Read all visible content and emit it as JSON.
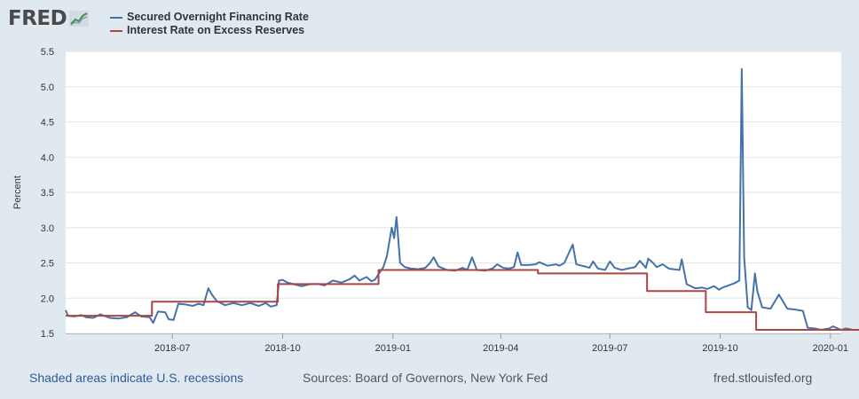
{
  "logo": {
    "text": "FRED",
    "icon": "fred-chart-icon"
  },
  "legend": [
    {
      "label": "Secured Overnight Financing Rate",
      "color": "#4572a7"
    },
    {
      "label": "Interest Rate on Excess Reserves",
      "color": "#aa4643"
    }
  ],
  "footer": {
    "recessions": "Shaded areas indicate U.S. recessions",
    "sources": "Sources: Board of Governors, New York Fed",
    "site": "fred.stlouisfed.org"
  },
  "chart_data": {
    "type": "line",
    "title": "",
    "xlabel": "",
    "ylabel": "Percent",
    "ylim": [
      1.5,
      5.5
    ],
    "yticks": [
      "1.5",
      "2.0",
      "2.5",
      "3.0",
      "3.5",
      "4.0",
      "4.5",
      "5.0",
      "5.5"
    ],
    "xlim": [
      "2018-04-03",
      "2020-01-10"
    ],
    "xticks": [
      {
        "date": "2018-07-01",
        "label": "2018-07"
      },
      {
        "date": "2018-10-01",
        "label": "2018-10"
      },
      {
        "date": "2019-01-01",
        "label": "2019-01"
      },
      {
        "date": "2019-04-01",
        "label": "2019-04"
      },
      {
        "date": "2019-07-01",
        "label": "2019-07"
      },
      {
        "date": "2019-10-01",
        "label": "2019-10"
      },
      {
        "date": "2020-01-01",
        "label": "2020-01"
      }
    ],
    "grid": "horizontal",
    "legend_position": "top-left",
    "series": [
      {
        "name": "Secured Overnight Financing Rate",
        "color": "#4572a7",
        "points": [
          [
            "2018-04-03",
            1.83
          ],
          [
            "2018-04-05",
            1.75
          ],
          [
            "2018-04-10",
            1.74
          ],
          [
            "2018-04-16",
            1.76
          ],
          [
            "2018-04-20",
            1.73
          ],
          [
            "2018-04-26",
            1.72
          ],
          [
            "2018-05-02",
            1.77
          ],
          [
            "2018-05-10",
            1.72
          ],
          [
            "2018-05-17",
            1.71
          ],
          [
            "2018-05-24",
            1.73
          ],
          [
            "2018-05-31",
            1.8
          ],
          [
            "2018-06-05",
            1.74
          ],
          [
            "2018-06-12",
            1.73
          ],
          [
            "2018-06-15",
            1.65
          ],
          [
            "2018-06-19",
            1.81
          ],
          [
            "2018-06-25",
            1.8
          ],
          [
            "2018-06-28",
            1.7
          ],
          [
            "2018-07-02",
            1.69
          ],
          [
            "2018-07-06",
            1.92
          ],
          [
            "2018-07-12",
            1.91
          ],
          [
            "2018-07-18",
            1.89
          ],
          [
            "2018-07-23",
            1.92
          ],
          [
            "2018-07-27",
            1.9
          ],
          [
            "2018-07-31",
            2.14
          ],
          [
            "2018-08-03",
            2.05
          ],
          [
            "2018-08-07",
            1.96
          ],
          [
            "2018-08-14",
            1.9
          ],
          [
            "2018-08-21",
            1.93
          ],
          [
            "2018-08-28",
            1.9
          ],
          [
            "2018-09-04",
            1.93
          ],
          [
            "2018-09-11",
            1.89
          ],
          [
            "2018-09-17",
            1.93
          ],
          [
            "2018-09-21",
            1.88
          ],
          [
            "2018-09-26",
            1.9
          ],
          [
            "2018-09-28",
            2.25
          ],
          [
            "2018-10-01",
            2.26
          ],
          [
            "2018-10-05",
            2.22
          ],
          [
            "2018-10-12",
            2.19
          ],
          [
            "2018-10-17",
            2.17
          ],
          [
            "2018-10-24",
            2.2
          ],
          [
            "2018-10-31",
            2.2
          ],
          [
            "2018-11-05",
            2.18
          ],
          [
            "2018-11-12",
            2.25
          ],
          [
            "2018-11-19",
            2.22
          ],
          [
            "2018-11-26",
            2.27
          ],
          [
            "2018-11-30",
            2.32
          ],
          [
            "2018-12-04",
            2.25
          ],
          [
            "2018-12-10",
            2.3
          ],
          [
            "2018-12-14",
            2.24
          ],
          [
            "2018-12-17",
            2.26
          ],
          [
            "2018-12-20",
            2.34
          ],
          [
            "2018-12-24",
            2.44
          ],
          [
            "2018-12-27",
            2.6
          ],
          [
            "2018-12-31",
            3.0
          ],
          [
            "2019-01-02",
            2.85
          ],
          [
            "2019-01-04",
            3.15
          ],
          [
            "2019-01-07",
            2.5
          ],
          [
            "2019-01-11",
            2.44
          ],
          [
            "2019-01-16",
            2.42
          ],
          [
            "2019-01-22",
            2.41
          ],
          [
            "2019-01-28",
            2.43
          ],
          [
            "2019-02-01",
            2.5
          ],
          [
            "2019-02-04",
            2.58
          ],
          [
            "2019-02-08",
            2.45
          ],
          [
            "2019-02-15",
            2.4
          ],
          [
            "2019-02-22",
            2.39
          ],
          [
            "2019-02-28",
            2.43
          ],
          [
            "2019-03-04",
            2.4
          ],
          [
            "2019-03-08",
            2.58
          ],
          [
            "2019-03-12",
            2.4
          ],
          [
            "2019-03-19",
            2.39
          ],
          [
            "2019-03-25",
            2.42
          ],
          [
            "2019-03-29",
            2.48
          ],
          [
            "2019-04-03",
            2.43
          ],
          [
            "2019-04-08",
            2.42
          ],
          [
            "2019-04-12",
            2.44
          ],
          [
            "2019-04-15",
            2.65
          ],
          [
            "2019-04-18",
            2.47
          ],
          [
            "2019-04-24",
            2.47
          ],
          [
            "2019-04-30",
            2.48
          ],
          [
            "2019-05-03",
            2.51
          ],
          [
            "2019-05-10",
            2.46
          ],
          [
            "2019-05-17",
            2.48
          ],
          [
            "2019-05-20",
            2.46
          ],
          [
            "2019-05-24",
            2.5
          ],
          [
            "2019-05-31",
            2.76
          ],
          [
            "2019-06-03",
            2.48
          ],
          [
            "2019-06-10",
            2.45
          ],
          [
            "2019-06-14",
            2.43
          ],
          [
            "2019-06-17",
            2.52
          ],
          [
            "2019-06-21",
            2.42
          ],
          [
            "2019-06-27",
            2.4
          ],
          [
            "2019-07-01",
            2.52
          ],
          [
            "2019-07-05",
            2.43
          ],
          [
            "2019-07-11",
            2.4
          ],
          [
            "2019-07-16",
            2.42
          ],
          [
            "2019-07-22",
            2.44
          ],
          [
            "2019-07-26",
            2.53
          ],
          [
            "2019-07-31",
            2.43
          ],
          [
            "2019-08-02",
            2.56
          ],
          [
            "2019-08-06",
            2.5
          ],
          [
            "2019-08-09",
            2.44
          ],
          [
            "2019-08-14",
            2.48
          ],
          [
            "2019-08-19",
            2.42
          ],
          [
            "2019-08-23",
            2.41
          ],
          [
            "2019-08-28",
            2.4
          ],
          [
            "2019-08-30",
            2.55
          ],
          [
            "2019-09-03",
            2.2
          ],
          [
            "2019-09-10",
            2.14
          ],
          [
            "2019-09-16",
            2.15
          ],
          [
            "2019-09-20",
            2.13
          ],
          [
            "2019-09-26",
            2.17
          ],
          [
            "2019-09-30",
            2.12
          ],
          [
            "2019-10-03",
            2.15
          ],
          [
            "2019-10-08",
            2.18
          ],
          [
            "2019-10-14",
            2.22
          ],
          [
            "2019-10-17",
            2.25
          ],
          [
            "2019-10-19",
            5.25
          ],
          [
            "2019-10-21",
            2.58
          ],
          [
            "2019-10-24",
            1.87
          ],
          [
            "2019-10-27",
            1.83
          ],
          [
            "2019-10-30",
            2.35
          ],
          [
            "2019-11-01",
            2.1
          ],
          [
            "2019-11-05",
            1.87
          ],
          [
            "2019-11-12",
            1.85
          ],
          [
            "2019-11-19",
            2.05
          ],
          [
            "2019-11-26",
            1.85
          ],
          [
            "2019-12-02",
            1.84
          ],
          [
            "2019-12-09",
            1.82
          ],
          [
            "2019-12-13",
            1.58
          ],
          [
            "2019-12-19",
            1.57
          ],
          [
            "2019-12-24",
            1.55
          ],
          [
            "2019-12-31",
            1.57
          ],
          [
            "2020-01-03",
            1.6
          ],
          [
            "2020-01-07",
            1.57
          ],
          [
            "2020-01-10",
            1.55
          ],
          [
            "2020-01-14",
            1.57
          ],
          [
            "2020-01-20",
            1.55
          ],
          [
            "2020-01-25",
            1.55
          ]
        ]
      },
      {
        "name": "Interest Rate on Excess Reserves",
        "color": "#aa4643",
        "step": true,
        "points": [
          [
            "2018-04-03",
            1.75
          ],
          [
            "2018-06-14",
            1.95
          ],
          [
            "2018-09-27",
            2.2
          ],
          [
            "2018-12-20",
            2.4
          ],
          [
            "2019-05-02",
            2.35
          ],
          [
            "2019-08-01",
            2.1
          ],
          [
            "2019-09-19",
            1.8
          ],
          [
            "2019-10-31",
            1.55
          ],
          [
            "2020-01-25",
            1.55
          ]
        ]
      }
    ]
  }
}
